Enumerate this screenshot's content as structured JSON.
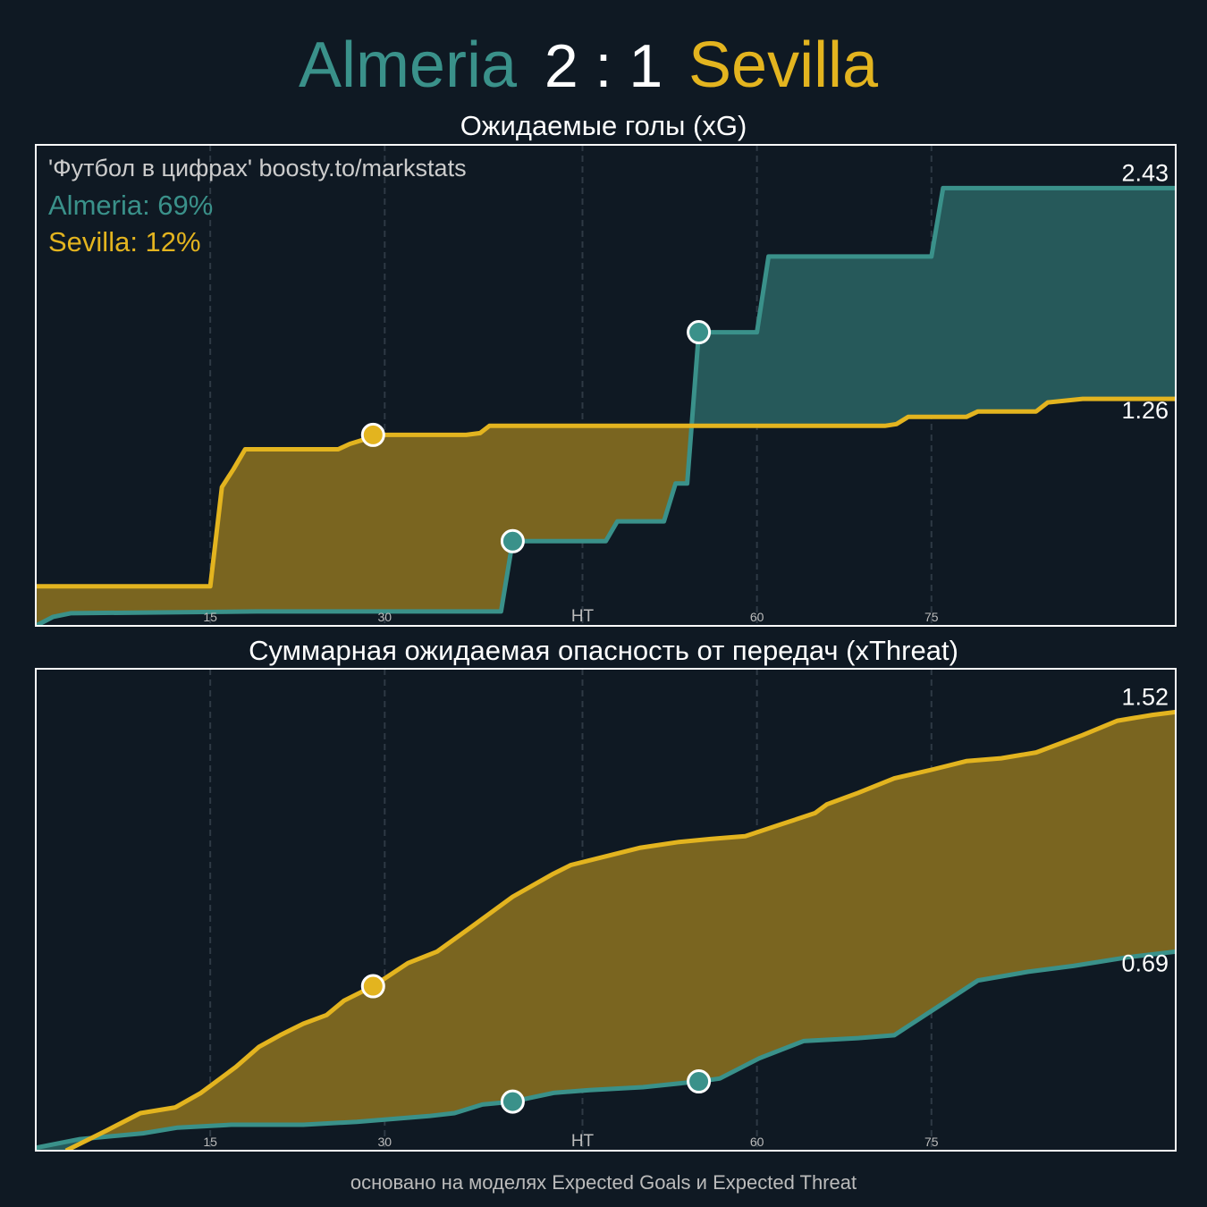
{
  "match": {
    "home": "Almeria",
    "score": "2 : 1",
    "away": "Sevilla"
  },
  "footer": "основано на моделях Expected Goals и Expected Threat",
  "chart_data": [
    {
      "type": "line",
      "title": "Ожидаемые голы (xG)",
      "annotations": [
        "'Футбол в цифрах' boosty.to/markstats",
        "Almeria: 69%",
        "Sevilla: 12%"
      ],
      "xlim": [
        0,
        98
      ],
      "ylim": [
        0,
        2.67
      ],
      "xticks": [
        15,
        30,
        {
          "value": 47,
          "label": "HT"
        },
        {
          "value": 62,
          "label": "60"
        },
        {
          "value": 77,
          "label": "75"
        }
      ],
      "series": [
        {
          "color": "#3a918a",
          "fill": "#26595a",
          "x": [
            0,
            1.5,
            3,
            19,
            40,
            41,
            49,
            50,
            54,
            55,
            56,
            57,
            62,
            63,
            77,
            78,
            98
          ],
          "values": [
            0,
            0.05,
            0.07,
            0.08,
            0.08,
            0.47,
            0.47,
            0.58,
            0.58,
            0.79,
            0.79,
            1.63,
            1.63,
            2.05,
            2.05,
            2.43,
            2.43
          ],
          "goals_x": [
            41,
            57
          ]
        },
        {
          "color": "#e3b41f",
          "fill": "#7a6520",
          "x": [
            0,
            15,
            16,
            17,
            18,
            26,
            27,
            28,
            29,
            36,
            37,
            38.2,
            39,
            73,
            74,
            75,
            80,
            81,
            86,
            87,
            90,
            98
          ],
          "values": [
            0.22,
            0.22,
            0.77,
            0.87,
            0.98,
            0.98,
            1.01,
            1.03,
            1.06,
            1.06,
            1.06,
            1.07,
            1.11,
            1.11,
            1.12,
            1.16,
            1.16,
            1.19,
            1.19,
            1.24,
            1.26,
            1.26
          ],
          "goals_x": [
            29
          ]
        }
      ]
    },
    {
      "type": "line",
      "title": "Суммарная ожидаемая опасность от передач (xThreat)",
      "xlim": [
        0,
        98
      ],
      "ylim": [
        0,
        1.67
      ],
      "xticks": [
        15,
        30,
        {
          "value": 47,
          "label": "HT"
        },
        {
          "value": 62,
          "label": "60"
        },
        {
          "value": 77,
          "label": "75"
        }
      ],
      "series": [
        {
          "color": "#3a918a",
          "fill": "#26595a",
          "x": [
            0,
            3.8,
            9.2,
            12.2,
            16.8,
            23,
            27.6,
            30.7,
            33.8,
            36,
            38.4,
            41,
            44.5,
            47.6,
            52.2,
            57,
            58.8,
            62.2,
            66,
            70.7,
            73.8,
            77.6,
            81,
            85.3,
            89.2,
            93.8,
            98
          ],
          "values": [
            0.01,
            0.04,
            0.06,
            0.08,
            0.09,
            0.09,
            0.1,
            0.11,
            0.12,
            0.13,
            0.16,
            0.17,
            0.2,
            0.21,
            0.22,
            0.24,
            0.25,
            0.32,
            0.38,
            0.39,
            0.4,
            0.5,
            0.59,
            0.62,
            0.64,
            0.67,
            0.69
          ],
          "goals_x": [
            41,
            57
          ]
        },
        {
          "color": "#e3b41f",
          "fill": "#7a6520",
          "x": [
            2.6,
            6.1,
            9,
            12,
            14.2,
            17.2,
            19.2,
            21,
            23,
            25,
            26.5,
            29,
            32,
            34.5,
            37.6,
            41,
            44.5,
            46,
            49,
            52,
            55.3,
            58,
            61,
            64,
            67,
            68,
            70.7,
            73.8,
            77,
            80,
            83,
            86,
            90,
            93,
            96,
            98
          ],
          "values": [
            0,
            0.07,
            0.13,
            0.15,
            0.2,
            0.29,
            0.36,
            0.4,
            0.44,
            0.47,
            0.52,
            0.57,
            0.65,
            0.69,
            0.78,
            0.88,
            0.96,
            0.99,
            1.02,
            1.05,
            1.07,
            1.08,
            1.09,
            1.13,
            1.17,
            1.2,
            1.24,
            1.29,
            1.32,
            1.35,
            1.36,
            1.38,
            1.44,
            1.49,
            1.51,
            1.52
          ],
          "goals_x": [
            29
          ]
        }
      ]
    }
  ]
}
